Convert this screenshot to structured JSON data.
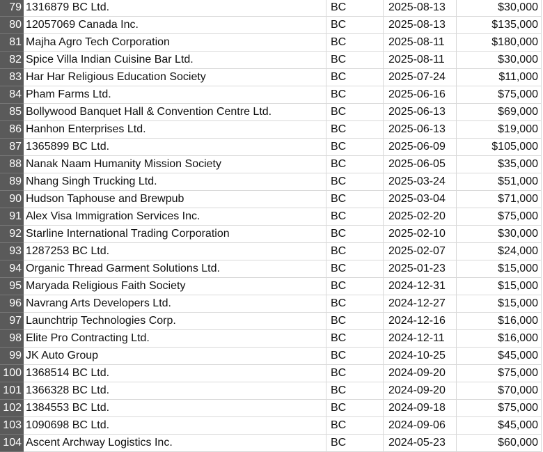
{
  "rows": [
    {
      "n": "79",
      "name": "1316879 BC Ltd.",
      "prov": "BC",
      "date": "2025-08-13",
      "amount": "$30,000"
    },
    {
      "n": "80",
      "name": "12057069 Canada Inc.",
      "prov": "BC",
      "date": "2025-08-13",
      "amount": "$135,000"
    },
    {
      "n": "81",
      "name": "Majha Agro Tech Corporation",
      "prov": "BC",
      "date": "2025-08-11",
      "amount": "$180,000"
    },
    {
      "n": "82",
      "name": "Spice Villa Indian Cuisine Bar Ltd.",
      "prov": "BC",
      "date": "2025-08-11",
      "amount": "$30,000"
    },
    {
      "n": "83",
      "name": "Har Har Religious Education Society",
      "prov": "BC",
      "date": "2025-07-24",
      "amount": "$11,000"
    },
    {
      "n": "84",
      "name": "Pham Farms Ltd.",
      "prov": "BC",
      "date": "2025-06-16",
      "amount": "$75,000"
    },
    {
      "n": "85",
      "name": "Bollywood Banquet Hall & Convention Centre Ltd.",
      "prov": "BC",
      "date": "2025-06-13",
      "amount": "$69,000"
    },
    {
      "n": "86",
      "name": "Hanhon Enterprises Ltd.",
      "prov": "BC",
      "date": "2025-06-13",
      "amount": "$19,000"
    },
    {
      "n": "87",
      "name": "1365899 BC Ltd.",
      "prov": "BC",
      "date": "2025-06-09",
      "amount": "$105,000"
    },
    {
      "n": "88",
      "name": "Nanak Naam Humanity Mission Society",
      "prov": "BC",
      "date": "2025-06-05",
      "amount": "$35,000"
    },
    {
      "n": "89",
      "name": "Nhang Singh Trucking Ltd.",
      "prov": "BC",
      "date": "2025-03-24",
      "amount": "$51,000"
    },
    {
      "n": "90",
      "name": "Hudson Taphouse and Brewpub",
      "prov": "BC",
      "date": "2025-03-04",
      "amount": "$71,000"
    },
    {
      "n": "91",
      "name": "Alex Visa Immigration Services Inc.",
      "prov": "BC",
      "date": "2025-02-20",
      "amount": "$75,000"
    },
    {
      "n": "92",
      "name": "Starline International Trading Corporation",
      "prov": "BC",
      "date": "2025-02-10",
      "amount": "$30,000"
    },
    {
      "n": "93",
      "name": "1287253 BC Ltd.",
      "prov": "BC",
      "date": "2025-02-07",
      "amount": "$24,000"
    },
    {
      "n": "94",
      "name": "Organic Thread Garment Solutions Ltd.",
      "prov": "BC",
      "date": "2025-01-23",
      "amount": "$15,000"
    },
    {
      "n": "95",
      "name": "Maryada Religious Faith Society",
      "prov": "BC",
      "date": "2024-12-31",
      "amount": "$15,000"
    },
    {
      "n": "96",
      "name": "Navrang Arts Developers Ltd.",
      "prov": "BC",
      "date": "2024-12-27",
      "amount": "$15,000"
    },
    {
      "n": "97",
      "name": "Launchtrip Technologies Corp.",
      "prov": "BC",
      "date": "2024-12-16",
      "amount": "$16,000"
    },
    {
      "n": "98",
      "name": "Elite Pro Contracting Ltd.",
      "prov": "BC",
      "date": "2024-12-11",
      "amount": "$16,000"
    },
    {
      "n": "99",
      "name": "JK Auto Group",
      "prov": "BC",
      "date": "2024-10-25",
      "amount": "$45,000"
    },
    {
      "n": "100",
      "name": "1368514 BC Ltd.",
      "prov": "BC",
      "date": "2024-09-20",
      "amount": "$75,000"
    },
    {
      "n": "101",
      "name": "1366328 BC Ltd.",
      "prov": "BC",
      "date": "2024-09-20",
      "amount": "$70,000"
    },
    {
      "n": "102",
      "name": "1384553 BC Ltd.",
      "prov": "BC",
      "date": "2024-09-18",
      "amount": "$75,000"
    },
    {
      "n": "103",
      "name": "1090698 BC Ltd.",
      "prov": "BC",
      "date": "2024-09-06",
      "amount": "$45,000"
    },
    {
      "n": "104",
      "name": "Ascent Archway Logistics Inc.",
      "prov": "BC",
      "date": "2024-05-23",
      "amount": "$60,000"
    }
  ]
}
